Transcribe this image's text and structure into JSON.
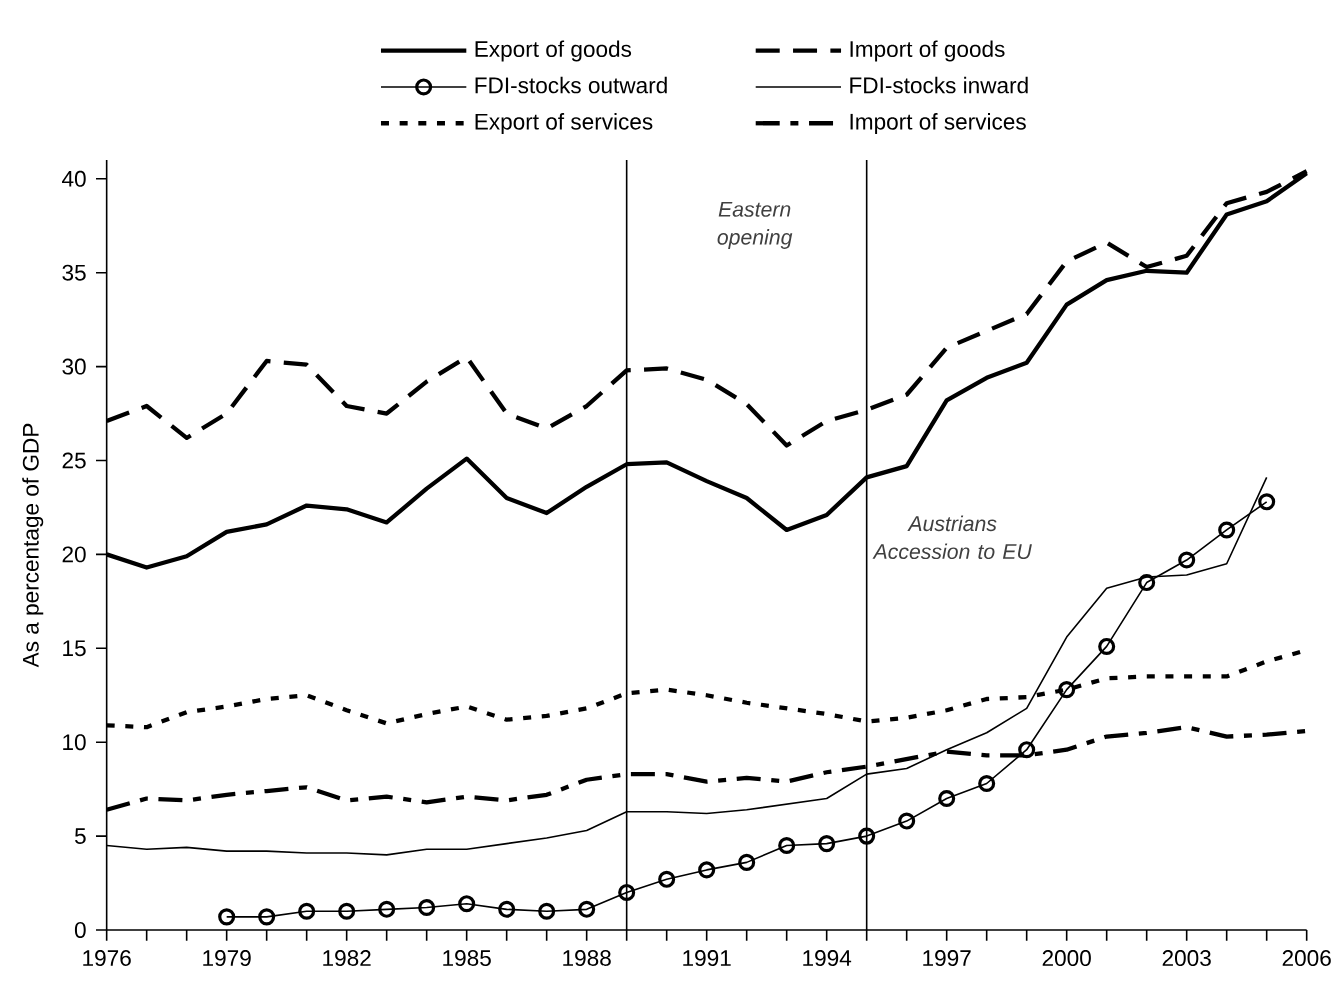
{
  "chart_data": {
    "type": "line",
    "ylabel": "As a percentage of GDP",
    "x": [
      1976,
      1977,
      1978,
      1979,
      1980,
      1981,
      1982,
      1983,
      1984,
      1985,
      1986,
      1987,
      1988,
      1989,
      1990,
      1991,
      1992,
      1993,
      1994,
      1995,
      1996,
      1997,
      1998,
      1999,
      2000,
      2001,
      2002,
      2003,
      2004,
      2005,
      2006
    ],
    "series": [
      {
        "name": "Export of goods",
        "color": "#000000",
        "line_style": "solid",
        "values": [
          20.0,
          19.3,
          19.9,
          21.2,
          21.6,
          22.6,
          22.4,
          21.7,
          23.5,
          25.1,
          23.0,
          22.2,
          23.6,
          24.8,
          24.9,
          23.9,
          23.0,
          21.3,
          22.1,
          24.1,
          24.7,
          28.2,
          29.4,
          30.2,
          33.3,
          34.6,
          35.1,
          35.0,
          38.1,
          38.8,
          40.3
        ]
      },
      {
        "name": "Import of goods",
        "color": "#000000",
        "line_style": "dashed",
        "values": [
          27.1,
          27.9,
          26.2,
          27.5,
          30.3,
          30.1,
          27.9,
          27.5,
          29.2,
          30.5,
          27.5,
          26.7,
          27.9,
          29.8,
          29.9,
          29.3,
          28.0,
          25.8,
          27.1,
          27.7,
          28.5,
          31.0,
          31.9,
          32.8,
          35.6,
          36.6,
          35.3,
          35.9,
          38.7,
          39.3,
          40.4
        ]
      },
      {
        "name": "FDI-stocks outward",
        "color": "#000000",
        "line_style": "solid",
        "marker": "circle",
        "values": [
          null,
          null,
          null,
          0.7,
          0.7,
          1.0,
          1.0,
          1.1,
          1.2,
          1.4,
          1.1,
          1.0,
          1.1,
          2.0,
          2.7,
          3.2,
          3.6,
          4.5,
          4.6,
          5.0,
          5.8,
          7.0,
          7.8,
          9.6,
          12.8,
          15.1,
          18.5,
          19.7,
          21.3,
          22.8,
          null
        ]
      },
      {
        "name": "FDI-stocks inward",
        "color": "#000000",
        "line_style": "solid",
        "values": [
          4.5,
          4.3,
          4.4,
          4.2,
          4.2,
          4.1,
          4.1,
          4.0,
          4.3,
          4.3,
          4.6,
          4.9,
          5.3,
          6.3,
          6.3,
          6.2,
          6.4,
          6.7,
          7.0,
          8.3,
          8.6,
          9.6,
          10.5,
          11.8,
          15.6,
          18.2,
          18.8,
          18.9,
          19.5,
          24.1,
          null
        ]
      },
      {
        "name": "Export of services",
        "color": "#000000",
        "line_style": "dotted",
        "values": [
          10.9,
          10.8,
          11.6,
          11.9,
          12.3,
          12.5,
          11.7,
          11.0,
          11.5,
          11.9,
          11.2,
          11.4,
          11.8,
          12.6,
          12.8,
          12.5,
          12.1,
          11.8,
          11.5,
          11.1,
          11.3,
          11.7,
          12.3,
          12.4,
          12.8,
          13.4,
          13.5,
          13.5,
          13.5,
          14.3,
          14.9
        ]
      },
      {
        "name": "Import of services",
        "color": "#000000",
        "line_style": "dashdot",
        "values": [
          6.4,
          7.0,
          6.9,
          7.2,
          7.4,
          7.6,
          6.9,
          7.1,
          6.8,
          7.1,
          6.9,
          7.2,
          8.0,
          8.3,
          8.3,
          7.9,
          8.1,
          7.9,
          8.4,
          8.7,
          9.1,
          9.5,
          9.3,
          9.3,
          9.6,
          10.3,
          10.5,
          10.8,
          10.3,
          10.4,
          10.6
        ]
      }
    ],
    "xlim": [
      1976,
      2006
    ],
    "ylim": [
      0,
      41
    ],
    "xticks": [
      1976,
      {
        "value": 1977,
        "label": null
      },
      {
        "value": 1978,
        "label": null
      },
      1979,
      {
        "value": 1980,
        "label": null
      },
      {
        "value": 1981,
        "label": null
      },
      1982,
      {
        "value": 1983,
        "label": null
      },
      {
        "value": 1984,
        "label": null
      },
      1985,
      {
        "value": 1986,
        "label": null
      },
      {
        "value": 1987,
        "label": null
      },
      1988,
      {
        "value": 1989,
        "label": null
      },
      {
        "value": 1990,
        "label": null
      },
      1991,
      {
        "value": 1992,
        "label": null
      },
      {
        "value": 1993,
        "label": null
      },
      1994,
      {
        "value": 1995,
        "label": null
      },
      {
        "value": 1996,
        "label": null
      },
      1997,
      {
        "value": 1998,
        "label": null
      },
      {
        "value": 1999,
        "label": null
      },
      2000,
      {
        "value": 2001,
        "label": null
      },
      {
        "value": 2002,
        "label": null
      },
      2003,
      {
        "value": 2004,
        "label": null
      },
      {
        "value": 2005,
        "label": null
      },
      2006
    ],
    "yticks": [
      0,
      5,
      10,
      15,
      20,
      25,
      30,
      35,
      40
    ],
    "ref_lines": [
      {
        "axis": "x",
        "value": 1989,
        "color": "#000000"
      },
      {
        "axis": "x",
        "value": 1995,
        "color": "#000000"
      }
    ],
    "annotations": [
      "Eastern opening",
      "Austrians Accession to EU"
    ],
    "grid": false,
    "legend": "top"
  }
}
